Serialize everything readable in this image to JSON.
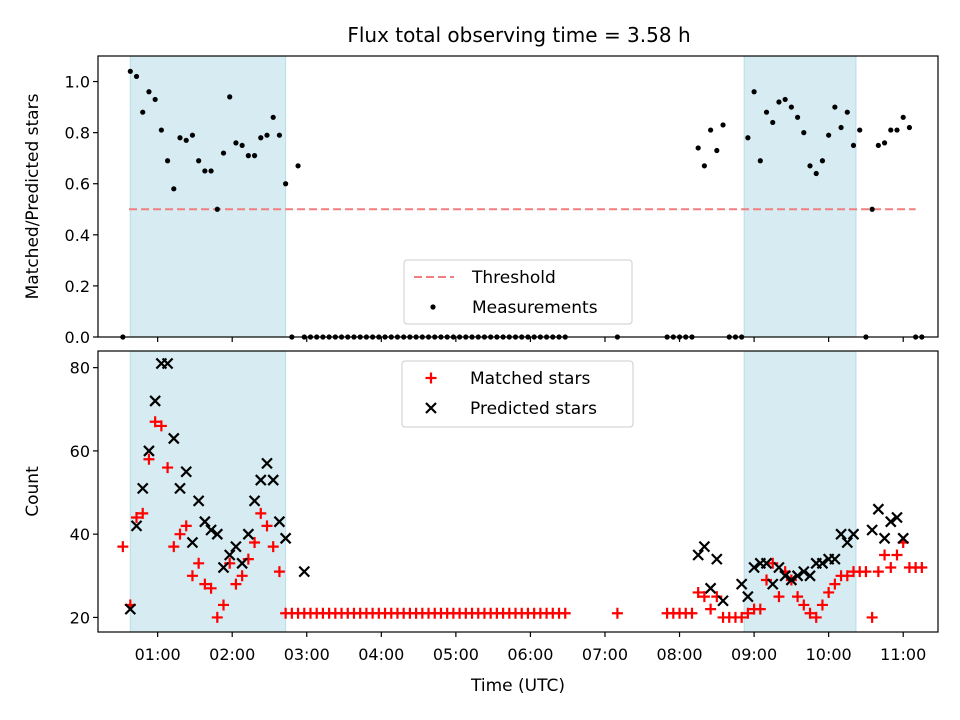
{
  "title": "Flux total observing time = 3.58 h",
  "chart_data": [
    {
      "type": "scatter",
      "ylabel": "Matched/Predicted stars",
      "xlabel": "",
      "ylim": [
        0,
        1.1
      ],
      "xlim": [
        "00:12",
        "11:28"
      ],
      "yticks": [
        0.0,
        0.2,
        0.4,
        0.6,
        0.8,
        1.0
      ],
      "ytick_labels": [
        "0.0",
        "0.2",
        "0.4",
        "0.6",
        "0.8",
        "1.0"
      ],
      "grid": false,
      "legend_placement": "bottom-center",
      "shaded_intervals": [
        [
          "00:38",
          "02:43"
        ],
        [
          "08:52",
          "10:22"
        ]
      ],
      "threshold": 0.5,
      "series": [
        {
          "name": "Threshold",
          "style": "dashed-line",
          "color": "#f07f7f",
          "x": [
            "00:37",
            "11:10"
          ],
          "y": [
            0.5,
            0.5
          ]
        },
        {
          "name": "Measurements",
          "style": "dot",
          "color": "#000000",
          "x": [
            "00:32",
            "00:38",
            "00:43",
            "00:48",
            "00:53",
            "00:58",
            "01:03",
            "01:08",
            "01:13",
            "01:18",
            "01:23",
            "01:28",
            "01:33",
            "01:38",
            "01:43",
            "01:48",
            "01:53",
            "01:58",
            "02:03",
            "02:08",
            "02:13",
            "02:18",
            "02:23",
            "02:28",
            "02:33",
            "02:38",
            "02:43",
            "02:48",
            "02:53",
            "02:58",
            "03:03",
            "03:08",
            "03:13",
            "03:18",
            "03:23",
            "03:28",
            "03:33",
            "03:38",
            "03:43",
            "03:48",
            "03:53",
            "03:58",
            "04:03",
            "04:08",
            "04:13",
            "04:18",
            "04:23",
            "04:28",
            "04:33",
            "04:38",
            "04:43",
            "04:48",
            "04:53",
            "04:58",
            "05:03",
            "05:08",
            "05:13",
            "05:18",
            "05:23",
            "05:28",
            "05:33",
            "05:38",
            "05:43",
            "05:48",
            "05:53",
            "05:58",
            "06:03",
            "06:08",
            "06:13",
            "06:18",
            "06:23",
            "06:28",
            "07:10",
            "07:50",
            "07:55",
            "08:00",
            "08:05",
            "08:10",
            "08:15",
            "08:20",
            "08:25",
            "08:30",
            "08:35",
            "08:40",
            "08:45",
            "08:50",
            "08:55",
            "09:00",
            "09:05",
            "09:10",
            "09:15",
            "09:20",
            "09:25",
            "09:30",
            "09:35",
            "09:40",
            "09:45",
            "09:50",
            "09:55",
            "10:00",
            "10:05",
            "10:10",
            "10:15",
            "10:20",
            "10:25",
            "10:30",
            "10:35",
            "10:40",
            "10:45",
            "10:50",
            "10:55",
            "11:00",
            "11:05",
            "11:10",
            "11:15"
          ],
          "y": [
            0.0,
            1.04,
            1.02,
            0.88,
            0.96,
            0.93,
            0.81,
            0.69,
            0.58,
            0.78,
            0.77,
            0.79,
            0.69,
            0.65,
            0.65,
            0.5,
            0.72,
            0.94,
            0.76,
            0.75,
            0.71,
            0.71,
            0.78,
            0.79,
            0.86,
            0.79,
            0.6,
            0.0,
            0.67,
            0.0,
            0.0,
            0.0,
            0.0,
            0.0,
            0.0,
            0.0,
            0.0,
            0.0,
            0.0,
            0.0,
            0.0,
            0.0,
            0.0,
            0.0,
            0.0,
            0.0,
            0.0,
            0.0,
            0.0,
            0.0,
            0.0,
            0.0,
            0.0,
            0.0,
            0.0,
            0.0,
            0.0,
            0.0,
            0.0,
            0.0,
            0.0,
            0.0,
            0.0,
            0.0,
            0.0,
            0.0,
            0.0,
            0.0,
            0.0,
            0.0,
            0.0,
            0.0,
            0.0,
            0.0,
            0.0,
            0.0,
            0.0,
            0.0,
            0.74,
            0.67,
            0.81,
            0.73,
            0.83,
            0.0,
            0.0,
            0.0,
            0.78,
            0.96,
            0.69,
            0.88,
            0.84,
            0.92,
            0.93,
            0.9,
            0.86,
            0.8,
            0.67,
            0.64,
            0.69,
            0.79,
            0.9,
            0.82,
            0.88,
            0.75,
            0.81,
            0.0,
            0.5,
            0.75,
            0.76,
            0.81,
            0.81,
            0.86,
            0.82,
            0.0,
            0.0
          ]
        }
      ]
    },
    {
      "type": "scatter",
      "ylabel": "Count",
      "xlabel": "Time (UTC)",
      "ylim": [
        16.5,
        84
      ],
      "xlim": [
        "00:12",
        "11:28"
      ],
      "yticks": [
        20,
        40,
        60,
        80
      ],
      "ytick_labels": [
        "20",
        "40",
        "60",
        "80"
      ],
      "xticks": [
        "01:00",
        "02:00",
        "03:00",
        "04:00",
        "05:00",
        "06:00",
        "07:00",
        "08:00",
        "09:00",
        "10:00",
        "11:00"
      ],
      "grid": false,
      "legend_placement": "top-center",
      "shaded_intervals": [
        [
          "00:38",
          "02:43"
        ],
        [
          "08:52",
          "10:22"
        ]
      ],
      "series": [
        {
          "name": "Matched stars",
          "style": "plus",
          "color": "#ff0000",
          "x": [
            "00:32",
            "00:38",
            "00:43",
            "00:48",
            "00:53",
            "00:58",
            "01:03",
            "01:08",
            "01:13",
            "01:18",
            "01:23",
            "01:28",
            "01:33",
            "01:38",
            "01:43",
            "01:48",
            "01:53",
            "01:58",
            "02:03",
            "02:08",
            "02:13",
            "02:18",
            "02:23",
            "02:28",
            "02:33",
            "02:38",
            "02:43",
            "02:48",
            "02:53",
            "02:58",
            "03:03",
            "03:08",
            "03:13",
            "03:18",
            "03:23",
            "03:28",
            "03:33",
            "03:38",
            "03:43",
            "03:48",
            "03:53",
            "03:58",
            "04:03",
            "04:08",
            "04:13",
            "04:18",
            "04:23",
            "04:28",
            "04:33",
            "04:38",
            "04:43",
            "04:48",
            "04:53",
            "04:58",
            "05:03",
            "05:08",
            "05:13",
            "05:18",
            "05:23",
            "05:28",
            "05:33",
            "05:38",
            "05:43",
            "05:48",
            "05:53",
            "05:58",
            "06:03",
            "06:08",
            "06:13",
            "06:18",
            "06:23",
            "06:28",
            "07:10",
            "07:50",
            "07:55",
            "08:00",
            "08:05",
            "08:10",
            "08:15",
            "08:20",
            "08:25",
            "08:30",
            "08:35",
            "08:40",
            "08:45",
            "08:50",
            "08:55",
            "09:00",
            "09:05",
            "09:10",
            "09:15",
            "09:20",
            "09:25",
            "09:30",
            "09:35",
            "09:40",
            "09:45",
            "09:50",
            "09:55",
            "10:00",
            "10:05",
            "10:10",
            "10:15",
            "10:20",
            "10:25",
            "10:30",
            "10:35",
            "10:40",
            "10:45",
            "10:50",
            "10:55",
            "11:00",
            "11:05",
            "11:10",
            "11:15"
          ],
          "y": [
            37,
            23,
            44,
            45,
            58,
            67,
            66,
            56,
            37,
            40,
            42,
            30,
            33,
            28,
            27,
            20,
            23,
            33,
            28,
            30,
            34,
            38,
            45,
            42,
            37,
            31,
            21,
            21,
            21,
            21,
            21,
            21,
            21,
            21,
            21,
            21,
            21,
            21,
            21,
            21,
            21,
            21,
            21,
            21,
            21,
            21,
            21,
            21,
            21,
            21,
            21,
            21,
            21,
            21,
            21,
            21,
            21,
            21,
            21,
            21,
            21,
            21,
            21,
            21,
            21,
            21,
            21,
            21,
            21,
            21,
            21,
            21,
            21,
            21,
            21,
            21,
            21,
            21,
            26,
            25,
            22,
            25,
            20,
            20,
            20,
            20,
            21,
            22,
            22,
            29,
            33,
            25,
            31,
            29,
            25,
            23,
            21,
            20,
            23,
            26,
            28,
            30,
            30,
            31,
            31,
            31,
            20,
            31,
            35,
            32,
            35,
            38,
            32,
            32,
            32
          ]
        },
        {
          "name": "Predicted stars",
          "style": "x",
          "color": "#000000",
          "x": [
            "00:38",
            "00:43",
            "00:48",
            "00:53",
            "00:58",
            "01:03",
            "01:08",
            "01:13",
            "01:18",
            "01:23",
            "01:28",
            "01:33",
            "01:38",
            "01:43",
            "01:48",
            "01:53",
            "01:58",
            "02:03",
            "02:08",
            "02:13",
            "02:18",
            "02:23",
            "02:28",
            "02:33",
            "02:38",
            "02:43",
            "02:58",
            "08:15",
            "08:20",
            "08:25",
            "08:30",
            "08:35",
            "08:50",
            "08:55",
            "09:00",
            "09:05",
            "09:10",
            "09:15",
            "09:20",
            "09:25",
            "09:30",
            "09:35",
            "09:40",
            "09:45",
            "09:50",
            "09:55",
            "10:00",
            "10:05",
            "10:10",
            "10:15",
            "10:20",
            "10:35",
            "10:40",
            "10:45",
            "10:50",
            "10:55",
            "11:00"
          ],
          "y": [
            22,
            42,
            51,
            60,
            72,
            81,
            81,
            63,
            51,
            55,
            38,
            48,
            43,
            41,
            40,
            32,
            35,
            37,
            33,
            40,
            48,
            53,
            57,
            53,
            43,
            39,
            31,
            35,
            37,
            27,
            34,
            24,
            28,
            25,
            32,
            33,
            33,
            28,
            32,
            30,
            29,
            30,
            31,
            30,
            33,
            33,
            34,
            34,
            40,
            38,
            40,
            41,
            46,
            39,
            43,
            44,
            39
          ]
        }
      ]
    }
  ]
}
